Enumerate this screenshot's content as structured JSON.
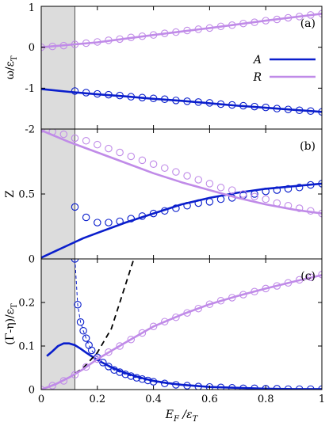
{
  "chart_data": [
    {
      "type": "line",
      "panel_label": "(a)",
      "ylabel": "ω/ε_T",
      "ylabel_parts": [
        "ω/ε",
        "T"
      ],
      "xlim": [
        0,
        1
      ],
      "ylim": [
        -2,
        1
      ],
      "yticks": [
        -2,
        -1,
        0,
        1
      ],
      "ytick_labels": [
        "-2",
        "-1",
        "0",
        "1"
      ],
      "shaded_x": [
        0,
        0.12
      ],
      "legend": {
        "position": "right",
        "entries": [
          {
            "label": "A",
            "color": "#0a1ecc"
          },
          {
            "label": "R",
            "color": "#c08be8"
          }
        ]
      },
      "series": [
        {
          "name": "A",
          "style": "line",
          "color": "#0a1ecc",
          "x": [
            0,
            0.1,
            0.2,
            0.3,
            0.4,
            0.5,
            0.6,
            0.7,
            0.8,
            0.9,
            1.0
          ],
          "y": [
            -1.02,
            -1.09,
            -1.15,
            -1.2,
            -1.26,
            -1.31,
            -1.37,
            -1.43,
            -1.48,
            -1.53,
            -1.58
          ]
        },
        {
          "name": "A",
          "style": "markers",
          "color": "#0a1ecc",
          "x": [
            0.12,
            0.16,
            0.2,
            0.24,
            0.28,
            0.32,
            0.36,
            0.4,
            0.44,
            0.48,
            0.52,
            0.56,
            0.6,
            0.64,
            0.68,
            0.72,
            0.76,
            0.8,
            0.84,
            0.88,
            0.92,
            0.96,
            1.0
          ],
          "y": [
            -1.07,
            -1.11,
            -1.14,
            -1.16,
            -1.18,
            -1.21,
            -1.23,
            -1.25,
            -1.27,
            -1.3,
            -1.32,
            -1.34,
            -1.36,
            -1.39,
            -1.41,
            -1.43,
            -1.45,
            -1.47,
            -1.5,
            -1.52,
            -1.54,
            -1.56,
            -1.58
          ]
        },
        {
          "name": "R",
          "style": "line",
          "color": "#c08be8",
          "x": [
            0,
            0.2,
            0.4,
            0.6,
            0.8,
            1.0
          ],
          "y": [
            0.0,
            0.12,
            0.3,
            0.47,
            0.65,
            0.82
          ]
        },
        {
          "name": "R",
          "style": "markers",
          "color": "#c08be8",
          "x": [
            0,
            0.04,
            0.08,
            0.12,
            0.16,
            0.2,
            0.24,
            0.28,
            0.32,
            0.36,
            0.4,
            0.44,
            0.48,
            0.52,
            0.56,
            0.6,
            0.64,
            0.68,
            0.72,
            0.76,
            0.8,
            0.84,
            0.88,
            0.92,
            0.96,
            1.0
          ],
          "y": [
            0.0,
            0.02,
            0.04,
            0.07,
            0.1,
            0.13,
            0.17,
            0.2,
            0.24,
            0.27,
            0.3,
            0.34,
            0.37,
            0.41,
            0.44,
            0.47,
            0.51,
            0.54,
            0.58,
            0.61,
            0.65,
            0.68,
            0.72,
            0.75,
            0.79,
            0.82
          ]
        }
      ]
    },
    {
      "type": "line",
      "panel_label": "(b)",
      "ylabel": "Z",
      "ylabel_parts": [
        "Z",
        ""
      ],
      "xlim": [
        0,
        1
      ],
      "ylim": [
        0,
        1
      ],
      "yticks": [
        0,
        0.5
      ],
      "ytick_labels": [
        "0",
        "0.5"
      ],
      "shaded_x": [
        0,
        0.12
      ],
      "series": [
        {
          "name": "A",
          "style": "line",
          "color": "#0a1ecc",
          "x": [
            0,
            0.05,
            0.1,
            0.15,
            0.2,
            0.3,
            0.4,
            0.5,
            0.6,
            0.7,
            0.8,
            0.9,
            1.0
          ],
          "y": [
            0.01,
            0.06,
            0.11,
            0.16,
            0.2,
            0.28,
            0.35,
            0.42,
            0.47,
            0.51,
            0.54,
            0.56,
            0.58
          ]
        },
        {
          "name": "A",
          "style": "markers",
          "color": "#0a1ecc",
          "x": [
            0.12,
            0.16,
            0.2,
            0.24,
            0.28,
            0.32,
            0.36,
            0.4,
            0.44,
            0.48,
            0.52,
            0.56,
            0.6,
            0.64,
            0.68,
            0.72,
            0.76,
            0.8,
            0.84,
            0.88,
            0.92,
            0.96,
            1.0
          ],
          "y": [
            0.4,
            0.32,
            0.28,
            0.28,
            0.29,
            0.31,
            0.33,
            0.35,
            0.37,
            0.39,
            0.41,
            0.43,
            0.44,
            0.46,
            0.47,
            0.49,
            0.5,
            0.52,
            0.53,
            0.54,
            0.55,
            0.57,
            0.58
          ]
        },
        {
          "name": "R",
          "style": "line",
          "color": "#c08be8",
          "x": [
            0,
            0.1,
            0.2,
            0.3,
            0.4,
            0.5,
            0.6,
            0.7,
            0.8,
            0.9,
            1.0
          ],
          "y": [
            0.99,
            0.9,
            0.82,
            0.74,
            0.66,
            0.59,
            0.53,
            0.47,
            0.42,
            0.38,
            0.35
          ]
        },
        {
          "name": "R",
          "style": "markers",
          "color": "#c08be8",
          "x": [
            0,
            0.04,
            0.08,
            0.12,
            0.16,
            0.2,
            0.24,
            0.28,
            0.32,
            0.36,
            0.4,
            0.44,
            0.48,
            0.52,
            0.56,
            0.6,
            0.64,
            0.68,
            0.72,
            0.76,
            0.8,
            0.84,
            0.88,
            0.92,
            0.96,
            1.0
          ],
          "y": [
            1.0,
            0.98,
            0.96,
            0.93,
            0.91,
            0.88,
            0.85,
            0.82,
            0.79,
            0.76,
            0.73,
            0.7,
            0.67,
            0.64,
            0.61,
            0.58,
            0.55,
            0.53,
            0.5,
            0.48,
            0.46,
            0.43,
            0.41,
            0.39,
            0.37,
            0.35
          ]
        }
      ]
    },
    {
      "type": "line",
      "panel_label": "(c)",
      "ylabel": "(Γ-η)/ε_T",
      "ylabel_parts": [
        "(Γ-η)/ε",
        "T"
      ],
      "xlabel": "E_F /ε_T",
      "xlabel_parts": [
        "E",
        "F",
        " /ε",
        "T"
      ],
      "xlim": [
        0,
        1
      ],
      "ylim": [
        0,
        0.3
      ],
      "xticks": [
        0,
        0.2,
        0.4,
        0.6,
        0.8,
        1
      ],
      "xtick_labels": [
        "0",
        "0.2",
        "0.4",
        "0.6",
        "0.8",
        "1"
      ],
      "yticks": [
        0,
        0.1,
        0.2
      ],
      "ytick_labels": [
        "0",
        "0.1",
        "0.2"
      ],
      "shaded_x": [
        0,
        0.12
      ],
      "series": [
        {
          "name": "A",
          "style": "line",
          "color": "#0a1ecc",
          "x": [
            0.02,
            0.04,
            0.06,
            0.08,
            0.1,
            0.12,
            0.14,
            0.16,
            0.2,
            0.25,
            0.3,
            0.35,
            0.4,
            0.45,
            0.5,
            0.6,
            0.7,
            0.8,
            0.9,
            1.0
          ],
          "y": [
            0.077,
            0.088,
            0.1,
            0.106,
            0.106,
            0.102,
            0.094,
            0.085,
            0.068,
            0.051,
            0.038,
            0.028,
            0.02,
            0.015,
            0.011,
            0.006,
            0.004,
            0.002,
            0.001,
            0.001
          ]
        },
        {
          "name": "A",
          "style": "markers-dashed",
          "color": "#0a1ecc",
          "x": [
            0.12,
            0.13,
            0.14,
            0.15,
            0.16,
            0.17,
            0.18,
            0.2,
            0.22,
            0.24,
            0.26,
            0.28,
            0.3,
            0.32,
            0.34,
            0.36,
            0.38,
            0.4,
            0.44,
            0.48,
            0.52,
            0.56,
            0.6,
            0.64,
            0.68,
            0.72,
            0.76,
            0.8,
            0.84,
            0.88,
            0.92,
            0.96,
            1.0
          ],
          "y": [
            0.3,
            0.195,
            0.155,
            0.135,
            0.118,
            0.102,
            0.09,
            0.074,
            0.062,
            0.053,
            0.045,
            0.04,
            0.035,
            0.031,
            0.027,
            0.024,
            0.021,
            0.018,
            0.014,
            0.011,
            0.009,
            0.007,
            0.006,
            0.005,
            0.004,
            0.003,
            0.003,
            0.002,
            0.002,
            0.001,
            0.001,
            0.001,
            0.001
          ]
        },
        {
          "name": "",
          "style": "dashed",
          "color": "#000000",
          "x": [
            0,
            0.05,
            0.1,
            0.15,
            0.2,
            0.25,
            0.3,
            0.33
          ],
          "y": [
            0.0,
            0.012,
            0.028,
            0.05,
            0.085,
            0.14,
            0.24,
            0.3
          ]
        },
        {
          "name": "R",
          "style": "line",
          "color": "#c08be8",
          "x": [
            0,
            0.05,
            0.1,
            0.15,
            0.2,
            0.3,
            0.4,
            0.5,
            0.6,
            0.7,
            0.8,
            0.9,
            1.0
          ],
          "y": [
            0.0,
            0.012,
            0.028,
            0.047,
            0.07,
            0.108,
            0.145,
            0.172,
            0.196,
            0.215,
            0.232,
            0.248,
            0.263
          ]
        },
        {
          "name": "R",
          "style": "markers",
          "color": "#c08be8",
          "x": [
            0,
            0.04,
            0.08,
            0.12,
            0.16,
            0.2,
            0.24,
            0.28,
            0.32,
            0.36,
            0.4,
            0.44,
            0.48,
            0.52,
            0.56,
            0.6,
            0.64,
            0.68,
            0.72,
            0.76,
            0.8,
            0.84,
            0.88,
            0.92,
            0.96,
            1.0
          ],
          "y": [
            0.0,
            0.009,
            0.02,
            0.034,
            0.052,
            0.07,
            0.086,
            0.1,
            0.115,
            0.13,
            0.145,
            0.156,
            0.166,
            0.176,
            0.186,
            0.196,
            0.204,
            0.211,
            0.218,
            0.225,
            0.232,
            0.238,
            0.245,
            0.252,
            0.258,
            0.264
          ]
        }
      ]
    }
  ]
}
